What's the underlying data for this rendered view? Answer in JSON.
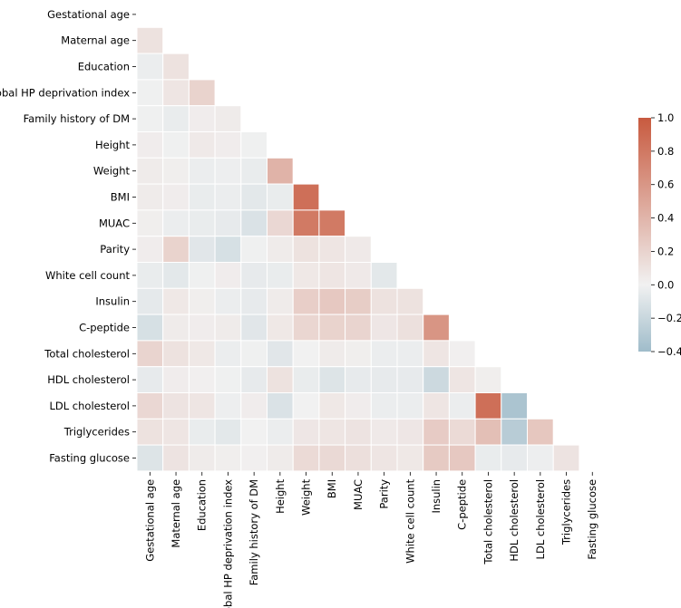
{
  "chart_data": {
    "type": "heatmap",
    "title": "",
    "variables": [
      "Gestational age",
      "Maternal age",
      "Education",
      "Pobal HP deprivation index",
      "Family history of DM",
      "Height",
      "Weight",
      "BMI",
      "MUAC",
      "Parity",
      "White cell count",
      "Insulin",
      "C-peptide",
      "Total cholesterol",
      "HDL cholesterol",
      "LDL cholesterol",
      "Triglycerides",
      "Fasting glucose"
    ],
    "mask": "upper-triangle-including-diagonal",
    "lower_triangle": [
      [],
      [
        0.1
      ],
      [
        -0.03,
        0.1
      ],
      [
        -0.01,
        0.08,
        0.2
      ],
      [
        -0.01,
        -0.04,
        0.03,
        0.04
      ],
      [
        0.03,
        -0.01,
        0.05,
        0.03,
        -0.01
      ],
      [
        0.04,
        0.02,
        -0.03,
        -0.02,
        -0.04,
        0.41
      ],
      [
        0.04,
        0.03,
        -0.04,
        -0.03,
        -0.07,
        -0.04,
        0.86
      ],
      [
        0.02,
        -0.03,
        -0.04,
        -0.05,
        -0.11,
        0.17,
        0.79,
        0.79
      ],
      [
        0.03,
        0.2,
        -0.08,
        -0.13,
        -0.01,
        0.04,
        0.1,
        0.08,
        0.05
      ],
      [
        -0.04,
        -0.07,
        -0.01,
        0.03,
        -0.05,
        -0.04,
        0.06,
        0.08,
        0.05,
        -0.07
      ],
      [
        -0.06,
        0.06,
        0.02,
        -0.03,
        -0.05,
        0.04,
        0.23,
        0.27,
        0.24,
        0.1,
        0.1
      ],
      [
        -0.13,
        0.04,
        0.03,
        0.04,
        -0.08,
        0.06,
        0.18,
        0.2,
        0.19,
        0.07,
        0.11,
        0.61
      ],
      [
        0.19,
        0.1,
        0.06,
        -0.03,
        -0.01,
        -0.08,
        0.0,
        0.04,
        0.02,
        -0.03,
        -0.03,
        0.08,
        0.01
      ],
      [
        -0.05,
        0.03,
        0.01,
        -0.01,
        -0.05,
        0.1,
        -0.04,
        -0.1,
        -0.05,
        -0.05,
        -0.05,
        -0.18,
        0.08,
        0.02
      ],
      [
        0.17,
        0.09,
        0.08,
        -0.02,
        0.03,
        -0.11,
        0.0,
        0.06,
        0.03,
        -0.03,
        -0.03,
        0.08,
        -0.03,
        0.86,
        -0.34
      ],
      [
        0.1,
        0.08,
        -0.04,
        -0.07,
        0.0,
        -0.03,
        0.07,
        0.08,
        0.09,
        0.05,
        0.07,
        0.25,
        0.15,
        0.33,
        -0.28,
        0.28
      ],
      [
        -0.1,
        0.09,
        0.04,
        0.02,
        0.01,
        0.04,
        0.15,
        0.16,
        0.12,
        0.08,
        0.06,
        0.26,
        0.27,
        -0.04,
        -0.05,
        -0.02,
        0.09
      ]
    ],
    "colorbar": {
      "vmin": -0.4,
      "vmax": 1.0,
      "center": 0.0,
      "ticks": [
        "1.0",
        "0.8",
        "0.6",
        "0.4",
        "0.2",
        "0.0",
        "−0.2",
        "−0.4"
      ],
      "tick_values": [
        1.0,
        0.8,
        0.6,
        0.4,
        0.2,
        0.0,
        -0.2,
        -0.4
      ],
      "low_color": "#9fbcca",
      "mid_color": "#f1f1f1",
      "high_color": "#c85a3f"
    }
  }
}
